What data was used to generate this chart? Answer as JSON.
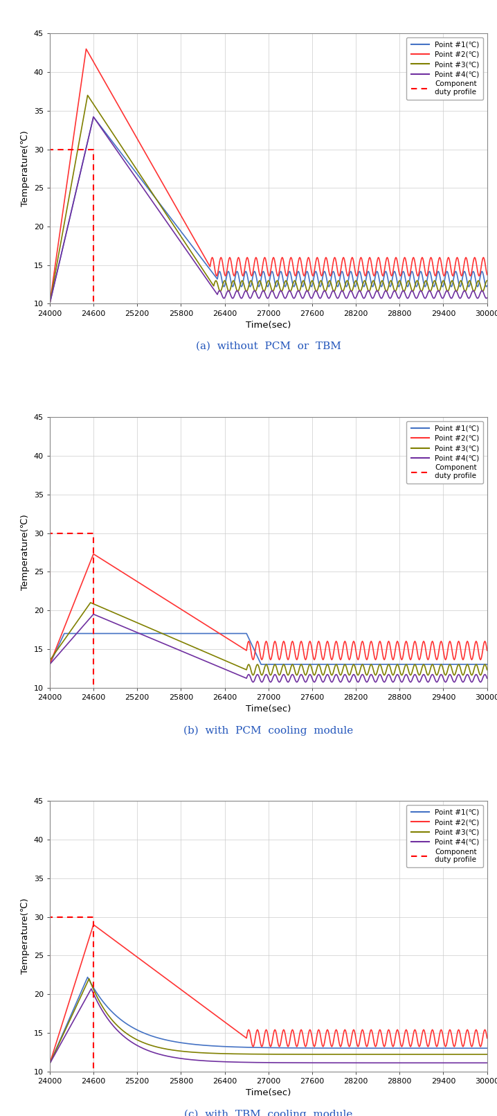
{
  "xlim": [
    24000,
    30000
  ],
  "ylim": [
    10,
    45
  ],
  "xticks": [
    24000,
    24600,
    25200,
    25800,
    26400,
    27000,
    27600,
    28200,
    28800,
    29400,
    30000
  ],
  "yticks": [
    10,
    15,
    20,
    25,
    30,
    35,
    40,
    45
  ],
  "xlabel": "Time(sec)",
  "ylabel": "Temperature(℃)",
  "colors": {
    "p1": "#4472c4",
    "p2": "#ff3333",
    "p3": "#808000",
    "p4": "#7030a0",
    "duty": "#ff0000"
  },
  "legend_labels": [
    "Point #1(℃)",
    "Point #2(℃)",
    "Point #3(℃)",
    "Point #4(℃)",
    "Component\nduty profile"
  ],
  "captions": [
    "(a)  without  PCM  or  TBM",
    "(b)  with  PCM  cooling  module",
    "(c)  with  TBM  cooling  module"
  ],
  "duty_x_start": 24000,
  "duty_x_end": 24600,
  "duty_y_low": 10,
  "duty_y_high": 30
}
